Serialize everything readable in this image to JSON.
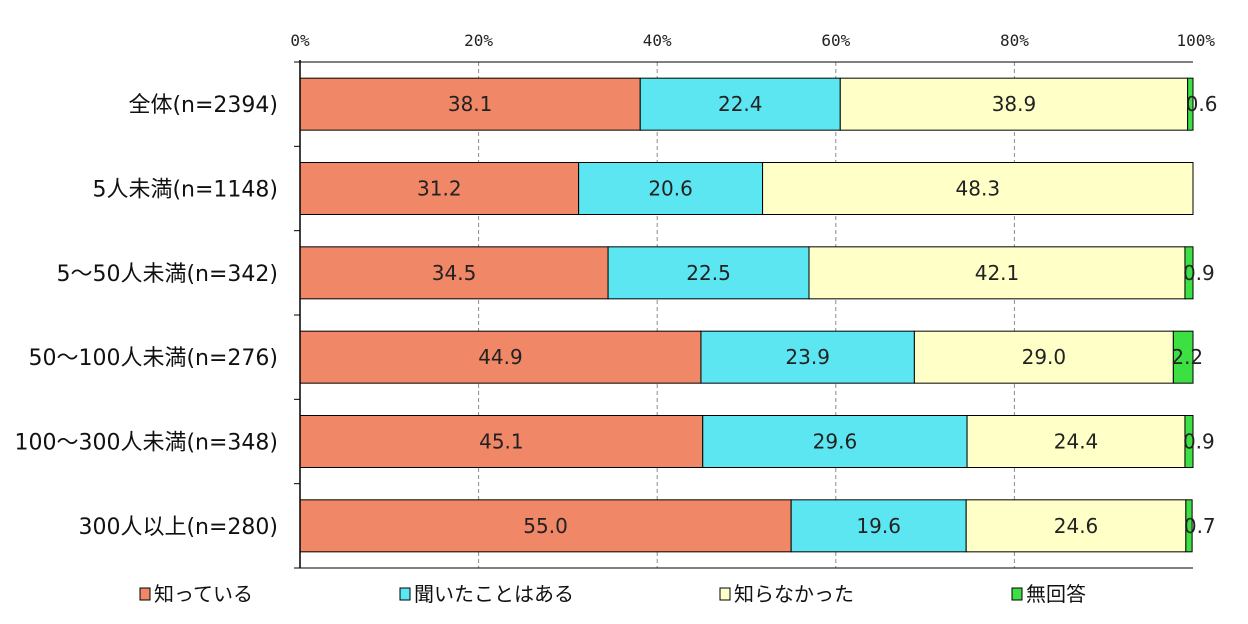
{
  "chart_data": {
    "type": "bar",
    "orientation": "horizontal",
    "stacked": true,
    "title": "",
    "xlabel": "",
    "ylabel": "",
    "xlim": [
      0,
      100
    ],
    "x_ticks": [
      "0%",
      "20%",
      "40%",
      "60%",
      "80%",
      "100%"
    ],
    "grid": "vertical-dashed",
    "legend_position": "bottom",
    "categories": [
      "全体(n=2394)",
      "5人未満(n=1148)",
      "5～50人未満(n=342)",
      "50～100人未満(n=276)",
      "100～300人未満(n=348)",
      "300人以上(n=280)"
    ],
    "series": [
      {
        "name": "知っている",
        "color": "#F08766",
        "values": [
          38.1,
          31.2,
          34.5,
          44.9,
          45.1,
          55.0
        ],
        "labels": [
          "38.1",
          "31.2",
          "34.5",
          "44.9",
          "45.1",
          "55.0"
        ]
      },
      {
        "name": "聞いたことはある",
        "color": "#5CE6F2",
        "values": [
          22.4,
          20.6,
          22.5,
          23.9,
          29.6,
          19.6
        ],
        "labels": [
          "22.4",
          "20.6",
          "22.5",
          "23.9",
          "29.6",
          "19.6"
        ]
      },
      {
        "name": "知らなかった",
        "color": "#FFFFC8",
        "values": [
          38.9,
          48.3,
          42.1,
          29.0,
          24.4,
          24.6
        ],
        "labels": [
          "38.9",
          "48.3",
          "42.1",
          "29.0",
          "24.4",
          "24.6"
        ]
      },
      {
        "name": "無回答",
        "color": "#3CE043",
        "values": [
          0.6,
          0.0,
          0.9,
          2.2,
          0.9,
          0.7
        ],
        "labels": [
          "0.6",
          "",
          "0.9",
          "2.2",
          "0.9",
          "0.7"
        ]
      }
    ]
  }
}
